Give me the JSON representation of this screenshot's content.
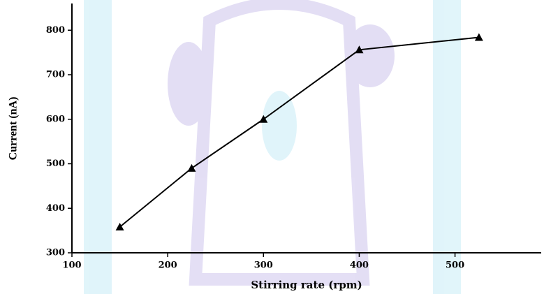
{
  "chart_data": {
    "type": "line",
    "x_label": "Stirring rate (rpm)",
    "y_label": "Current (nA)",
    "x": [
      150,
      225,
      300,
      400,
      525
    ],
    "series": [
      {
        "name": "Current",
        "color": "#000000",
        "values": [
          358,
          490,
          600,
          756,
          784
        ]
      }
    ],
    "xlim": [
      100,
      590
    ],
    "xticks": [
      100,
      200,
      300,
      400,
      500
    ],
    "ylim": [
      300,
      860
    ],
    "yticks": [
      300,
      400,
      500,
      600,
      700,
      800
    ]
  }
}
